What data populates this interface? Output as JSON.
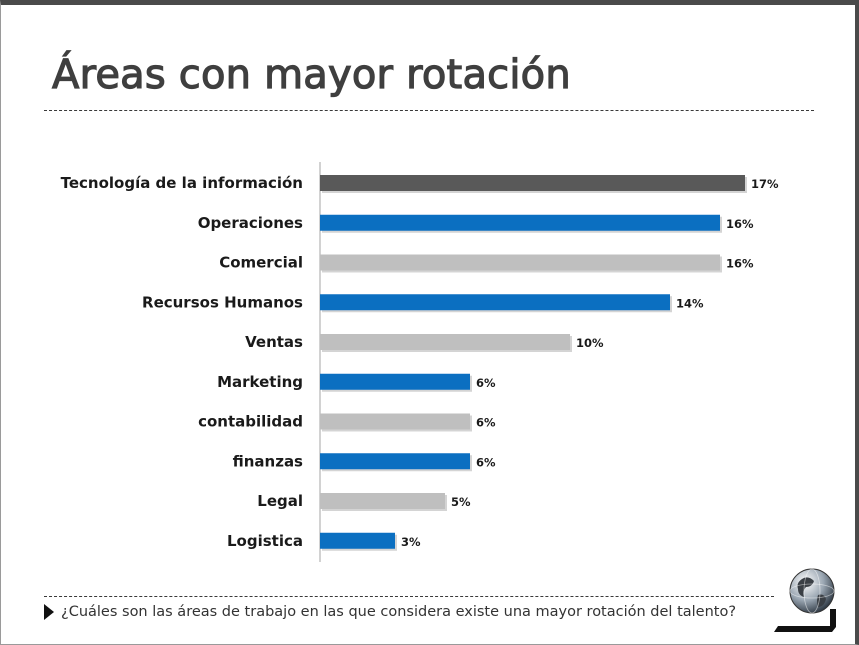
{
  "slide": {
    "title": "Áreas con mayor rotación",
    "footer_question": "¿Cuáles son las áreas de trabajo en las que considera existe una mayor rotación del talento?",
    "logo_icon": "globe-logo-icon"
  },
  "chart_data": {
    "type": "bar",
    "orientation": "horizontal",
    "categories": [
      "Tecnología de la información",
      "Operaciones",
      "Comercial",
      "Recursos Humanos",
      "Ventas",
      "Marketing",
      "contabilidad",
      "finanzas",
      "Legal",
      "Logistica"
    ],
    "values": [
      17,
      16,
      16,
      14,
      10,
      6,
      6,
      6,
      5,
      3
    ],
    "value_labels": [
      "17%",
      "16%",
      "16%",
      "14%",
      "10%",
      "6%",
      "6%",
      "6%",
      "5%",
      "3%"
    ],
    "bar_colors": [
      "#595959",
      "#0b6fc1",
      "#bfbfbf",
      "#0b6fc1",
      "#bfbfbf",
      "#0b6fc1",
      "#bfbfbf",
      "#0b6fc1",
      "#bfbfbf",
      "#0b6fc1"
    ],
    "xlim": [
      0,
      17
    ],
    "grid": false,
    "legend": "none"
  }
}
